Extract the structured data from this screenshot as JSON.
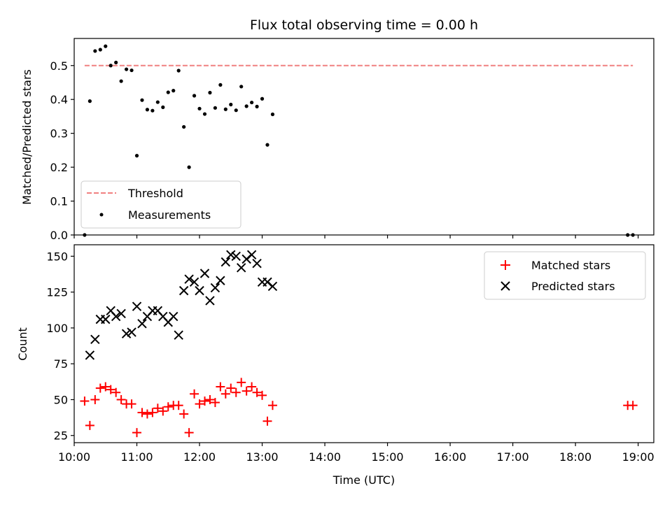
{
  "chart_data": [
    {
      "type": "scatter",
      "title": "Flux total observing time = 0.00 h",
      "xlabel": "",
      "ylabel": "Matched/Predicted stars",
      "xlim": [
        "10:00",
        "19:15"
      ],
      "ylim": [
        0,
        0.58
      ],
      "yticks": [
        "0.0",
        "0.1",
        "0.2",
        "0.3",
        "0.4",
        "0.5"
      ],
      "legend_placement": "lower-left",
      "threshold": {
        "name": "Threshold",
        "value": 0.5,
        "x_start": "10:10",
        "x_end": "18:55",
        "color": "#f08080",
        "style": "dashed"
      },
      "series": [
        {
          "name": "Measurements",
          "color": "#000000",
          "points": [
            [
              "10:10",
              0.0
            ],
            [
              "10:15",
              0.395
            ],
            [
              "10:20",
              0.543
            ],
            [
              "10:25",
              0.547
            ],
            [
              "10:30",
              0.557
            ],
            [
              "10:35",
              0.5
            ],
            [
              "10:40",
              0.509
            ],
            [
              "10:45",
              0.454
            ],
            [
              "10:50",
              0.489
            ],
            [
              "10:55",
              0.486
            ],
            [
              "11:00",
              0.234
            ],
            [
              "11:05",
              0.398
            ],
            [
              "11:10",
              0.37
            ],
            [
              "11:15",
              0.367
            ],
            [
              "11:20",
              0.392
            ],
            [
              "11:25",
              0.377
            ],
            [
              "11:30",
              0.421
            ],
            [
              "11:35",
              0.426
            ],
            [
              "11:40",
              0.485
            ],
            [
              "11:45",
              0.319
            ],
            [
              "11:50",
              0.2
            ],
            [
              "11:55",
              0.411
            ],
            [
              "12:00",
              0.373
            ],
            [
              "12:05",
              0.357
            ],
            [
              "12:10",
              0.42
            ],
            [
              "12:15",
              0.375
            ],
            [
              "12:20",
              0.443
            ],
            [
              "12:25",
              0.371
            ],
            [
              "12:30",
              0.385
            ],
            [
              "12:35",
              0.368
            ],
            [
              "12:40",
              0.438
            ],
            [
              "12:45",
              0.38
            ],
            [
              "12:50",
              0.391
            ],
            [
              "12:55",
              0.379
            ],
            [
              "13:00",
              0.402
            ],
            [
              "13:05",
              0.266
            ],
            [
              "13:10",
              0.356
            ],
            [
              "18:50",
              0.0
            ],
            [
              "18:55",
              0.0
            ]
          ]
        }
      ]
    },
    {
      "type": "scatter",
      "title": "",
      "xlabel": "Time (UTC)",
      "ylabel": "Count",
      "xlim": [
        "10:00",
        "19:15"
      ],
      "ylim": [
        20,
        158
      ],
      "yticks": [
        "25",
        "50",
        "75",
        "100",
        "125",
        "150"
      ],
      "xticks": [
        "10:00",
        "11:00",
        "12:00",
        "13:00",
        "14:00",
        "15:00",
        "16:00",
        "17:00",
        "18:00",
        "19:00"
      ],
      "legend_placement": "top-right",
      "series": [
        {
          "name": "Matched stars",
          "color": "#ff0000",
          "marker": "plus",
          "points": [
            [
              "10:10",
              49
            ],
            [
              "10:15",
              32
            ],
            [
              "10:20",
              50
            ],
            [
              "10:25",
              58
            ],
            [
              "10:30",
              59
            ],
            [
              "10:35",
              57
            ],
            [
              "10:40",
              55
            ],
            [
              "10:45",
              50
            ],
            [
              "10:50",
              47
            ],
            [
              "10:55",
              47
            ],
            [
              "11:00",
              27
            ],
            [
              "11:05",
              41
            ],
            [
              "11:10",
              40
            ],
            [
              "11:15",
              41
            ],
            [
              "11:20",
              44
            ],
            [
              "11:25",
              42
            ],
            [
              "11:30",
              45
            ],
            [
              "11:35",
              46
            ],
            [
              "11:40",
              46
            ],
            [
              "11:45",
              40
            ],
            [
              "11:50",
              27
            ],
            [
              "11:55",
              54
            ],
            [
              "12:00",
              47
            ],
            [
              "12:05",
              49
            ],
            [
              "12:10",
              50
            ],
            [
              "12:15",
              48
            ],
            [
              "12:20",
              59
            ],
            [
              "12:25",
              54
            ],
            [
              "12:30",
              58
            ],
            [
              "12:35",
              55
            ],
            [
              "12:40",
              62
            ],
            [
              "12:45",
              56
            ],
            [
              "12:50",
              59
            ],
            [
              "12:55",
              55
            ],
            [
              "13:00",
              53
            ],
            [
              "13:05",
              35
            ],
            [
              "13:10",
              46
            ],
            [
              "18:50",
              46
            ],
            [
              "18:55",
              46
            ]
          ]
        },
        {
          "name": "Predicted stars",
          "color": "#000000",
          "marker": "x",
          "points": [
            [
              "10:15",
              81
            ],
            [
              "10:20",
              92
            ],
            [
              "10:25",
              106
            ],
            [
              "10:30",
              106
            ],
            [
              "10:35",
              112
            ],
            [
              "10:40",
              108
            ],
            [
              "10:45",
              110
            ],
            [
              "10:50",
              96
            ],
            [
              "10:55",
              97
            ],
            [
              "11:00",
              115
            ],
            [
              "11:05",
              103
            ],
            [
              "11:10",
              108
            ],
            [
              "11:15",
              112
            ],
            [
              "11:20",
              112
            ],
            [
              "11:25",
              108
            ],
            [
              "11:30",
              104
            ],
            [
              "11:35",
              108
            ],
            [
              "11:40",
              95
            ],
            [
              "11:45",
              126
            ],
            [
              "11:50",
              134
            ],
            [
              "11:55",
              132
            ],
            [
              "12:00",
              126
            ],
            [
              "12:05",
              138
            ],
            [
              "12:10",
              119
            ],
            [
              "12:15",
              128
            ],
            [
              "12:20",
              133
            ],
            [
              "12:25",
              146
            ],
            [
              "12:30",
              151
            ],
            [
              "12:35",
              150
            ],
            [
              "12:40",
              142
            ],
            [
              "12:45",
              148
            ],
            [
              "12:50",
              151
            ],
            [
              "12:55",
              145
            ],
            [
              "13:00",
              132
            ],
            [
              "13:05",
              132
            ],
            [
              "13:10",
              129
            ]
          ]
        }
      ]
    }
  ]
}
